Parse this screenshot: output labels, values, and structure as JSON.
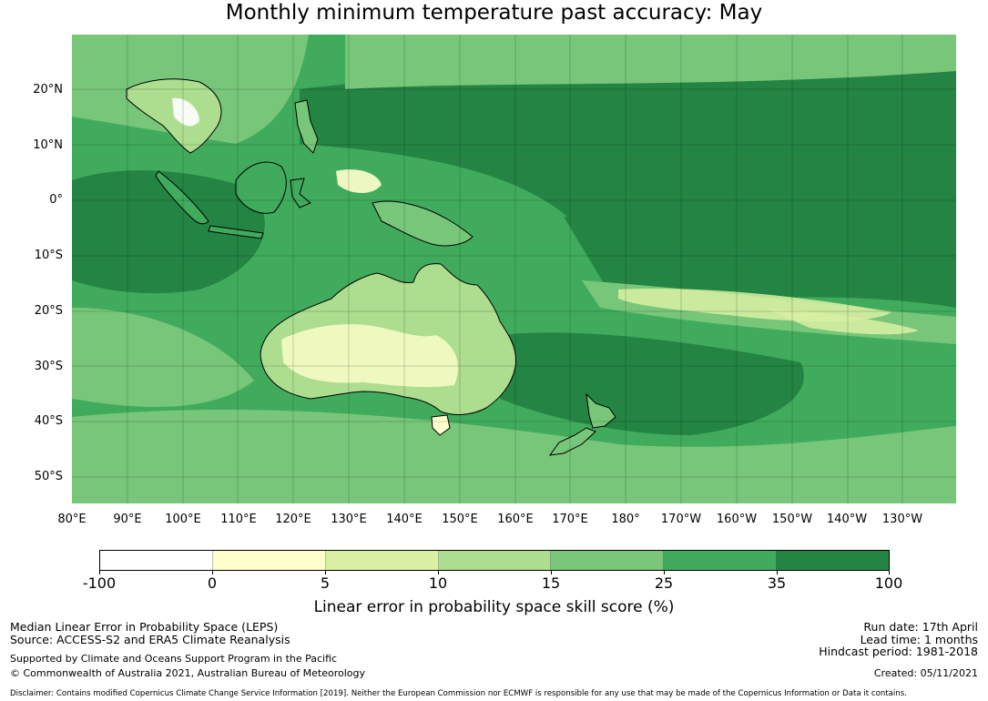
{
  "title": "Monthly minimum temperature past accuracy: May",
  "latitude_labels": [
    "20°N",
    "10°N",
    "0°",
    "10°S",
    "20°S",
    "30°S",
    "40°S",
    "50°S"
  ],
  "longitude_labels": [
    "80°E",
    "90°E",
    "100°E",
    "110°E",
    "120°E",
    "130°E",
    "140°E",
    "150°E",
    "160°E",
    "170°E",
    "180°",
    "170°W",
    "160°W",
    "150°W",
    "140°W",
    "130°W"
  ],
  "colorbar": {
    "ticks": [
      "-100",
      "0",
      "5",
      "10",
      "15",
      "25",
      "35",
      "100"
    ],
    "colors": [
      "#ffffff",
      "#ffffcc",
      "#d9f0a3",
      "#addd8e",
      "#78c679",
      "#41ab5d",
      "#238443"
    ],
    "label": "Linear error in probability space skill score (%)"
  },
  "footer": {
    "left_line1": "Median Linear Error in Probability Space (LEPS)",
    "left_line2": "Source: ACCESS-S2 and ERA5 Climate Reanalysis",
    "left_line3": "Supported by Climate and Oceans Support Program in the Pacific",
    "left_line4": "© Commonwealth of Australia 2021, Australian Bureau of Meteorology",
    "right_line1": "Run date: 17th April",
    "right_line2": "Lead time: 1 months",
    "right_line3": "Hindcast period: 1981-2018",
    "right_line4": "Created: 05/11/2021",
    "disclaimer": "Disclaimer: Contains modified Copernicus Climate Change Service Information [2019]. Neither the European Commission nor ECMWF is responsible for any use that may be made of the Copernicus Information or Data it contains."
  }
}
